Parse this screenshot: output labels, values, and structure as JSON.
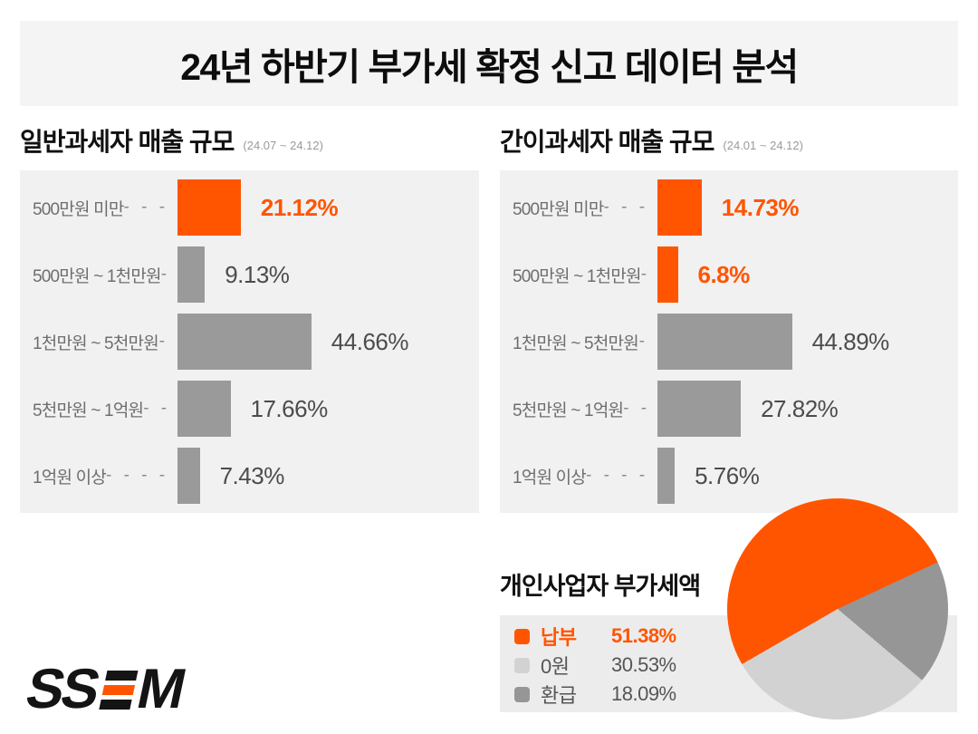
{
  "colors": {
    "accent_orange": "#ff5500",
    "bar_gray": "#9a9a9a",
    "panel_bg": "#f1f1f1",
    "header_bg": "#f4f4f4",
    "legend_bg": "#ececec",
    "pie_light_gray": "#d2d2d2",
    "pie_dark_gray": "#969696",
    "label_gray": "#6e6e6e",
    "value_gray": "#4c4c4c"
  },
  "header": {
    "title": "24년 하반기 부가세 확정 신고 데이터 분석"
  },
  "charts": {
    "general": {
      "title": "일반과세자 매출 규모",
      "period": "(24.07 ~ 24.12)",
      "rows": [
        {
          "label": "500만원 미만",
          "dashes": "- - -",
          "value": 21.12,
          "display": "21.12%",
          "highlight": true
        },
        {
          "label": "500만원 ~ 1천만원",
          "dashes": "-",
          "value": 9.13,
          "display": "9.13%",
          "highlight": false
        },
        {
          "label": "1천만원 ~ 5천만원",
          "dashes": "-",
          "value": 44.66,
          "display": "44.66%",
          "highlight": false
        },
        {
          "label": "5천만원 ~ 1억원",
          "dashes": "- -",
          "value": 17.66,
          "display": "17.66%",
          "highlight": false
        },
        {
          "label": "1억원 이상",
          "dashes": "- - - - -",
          "value": 7.43,
          "display": "7.43%",
          "highlight": false
        }
      ]
    },
    "simplified": {
      "title": "간이과세자 매출 규모",
      "period": "(24.01 ~ 24.12)",
      "rows": [
        {
          "label": "500만원 미만",
          "dashes": "- - -",
          "value": 14.73,
          "display": "14.73%",
          "highlight": true
        },
        {
          "label": "500만원 ~ 1천만원",
          "dashes": "-",
          "value": 6.8,
          "display": "6.8%",
          "highlight": true
        },
        {
          "label": "1천만원 ~ 5천만원",
          "dashes": "-",
          "value": 44.89,
          "display": "44.89%",
          "highlight": false
        },
        {
          "label": "5천만원 ~ 1억원",
          "dashes": "- -",
          "value": 27.82,
          "display": "27.82%",
          "highlight": false
        },
        {
          "label": "1억원 이상",
          "dashes": "- - - - -",
          "value": 5.76,
          "display": "5.76%",
          "highlight": false
        }
      ]
    }
  },
  "pie": {
    "title": "개인사업자 부가세액",
    "rotation_deg": 65,
    "legend": [
      {
        "label": "납부",
        "value": 51.38,
        "display": "51.38%",
        "color": "#ff5500",
        "highlight": true
      },
      {
        "label": "0원",
        "value": 30.53,
        "display": "30.53%",
        "color": "#d2d2d2",
        "highlight": false
      },
      {
        "label": "환급",
        "value": 18.09,
        "display": "18.09%",
        "color": "#969696",
        "highlight": false
      }
    ]
  },
  "logo": {
    "text": "SSEM"
  },
  "chart_data": [
    {
      "type": "bar",
      "orientation": "horizontal",
      "title": "일반과세자 매출 규모 (24.07 ~ 24.12)",
      "categories": [
        "500만원 미만",
        "500만원 ~ 1천만원",
        "1천만원 ~ 5천만원",
        "5천만원 ~ 1억원",
        "1억원 이상"
      ],
      "values": [
        21.12,
        9.13,
        44.66,
        17.66,
        7.43
      ],
      "unit": "%",
      "highlighted_categories": [
        "500만원 미만"
      ],
      "xlabel": "",
      "ylabel": "",
      "xlim": [
        0,
        50
      ],
      "grid": false,
      "legend": false
    },
    {
      "type": "bar",
      "orientation": "horizontal",
      "title": "간이과세자 매출 규모 (24.01 ~ 24.12)",
      "categories": [
        "500만원 미만",
        "500만원 ~ 1천만원",
        "1천만원 ~ 5천만원",
        "5천만원 ~ 1억원",
        "1억원 이상"
      ],
      "values": [
        14.73,
        6.8,
        44.89,
        27.82,
        5.76
      ],
      "unit": "%",
      "highlighted_categories": [
        "500만원 미만",
        "500만원 ~ 1천만원"
      ],
      "xlabel": "",
      "ylabel": "",
      "xlim": [
        0,
        50
      ],
      "grid": false,
      "legend": false
    },
    {
      "type": "pie",
      "title": "개인사업자 부가세액",
      "categories": [
        "납부",
        "0원",
        "환급"
      ],
      "values": [
        51.38,
        30.53,
        18.09
      ],
      "unit": "%",
      "colors": [
        "#ff5500",
        "#d2d2d2",
        "#969696"
      ],
      "legend_position": "left"
    }
  ]
}
